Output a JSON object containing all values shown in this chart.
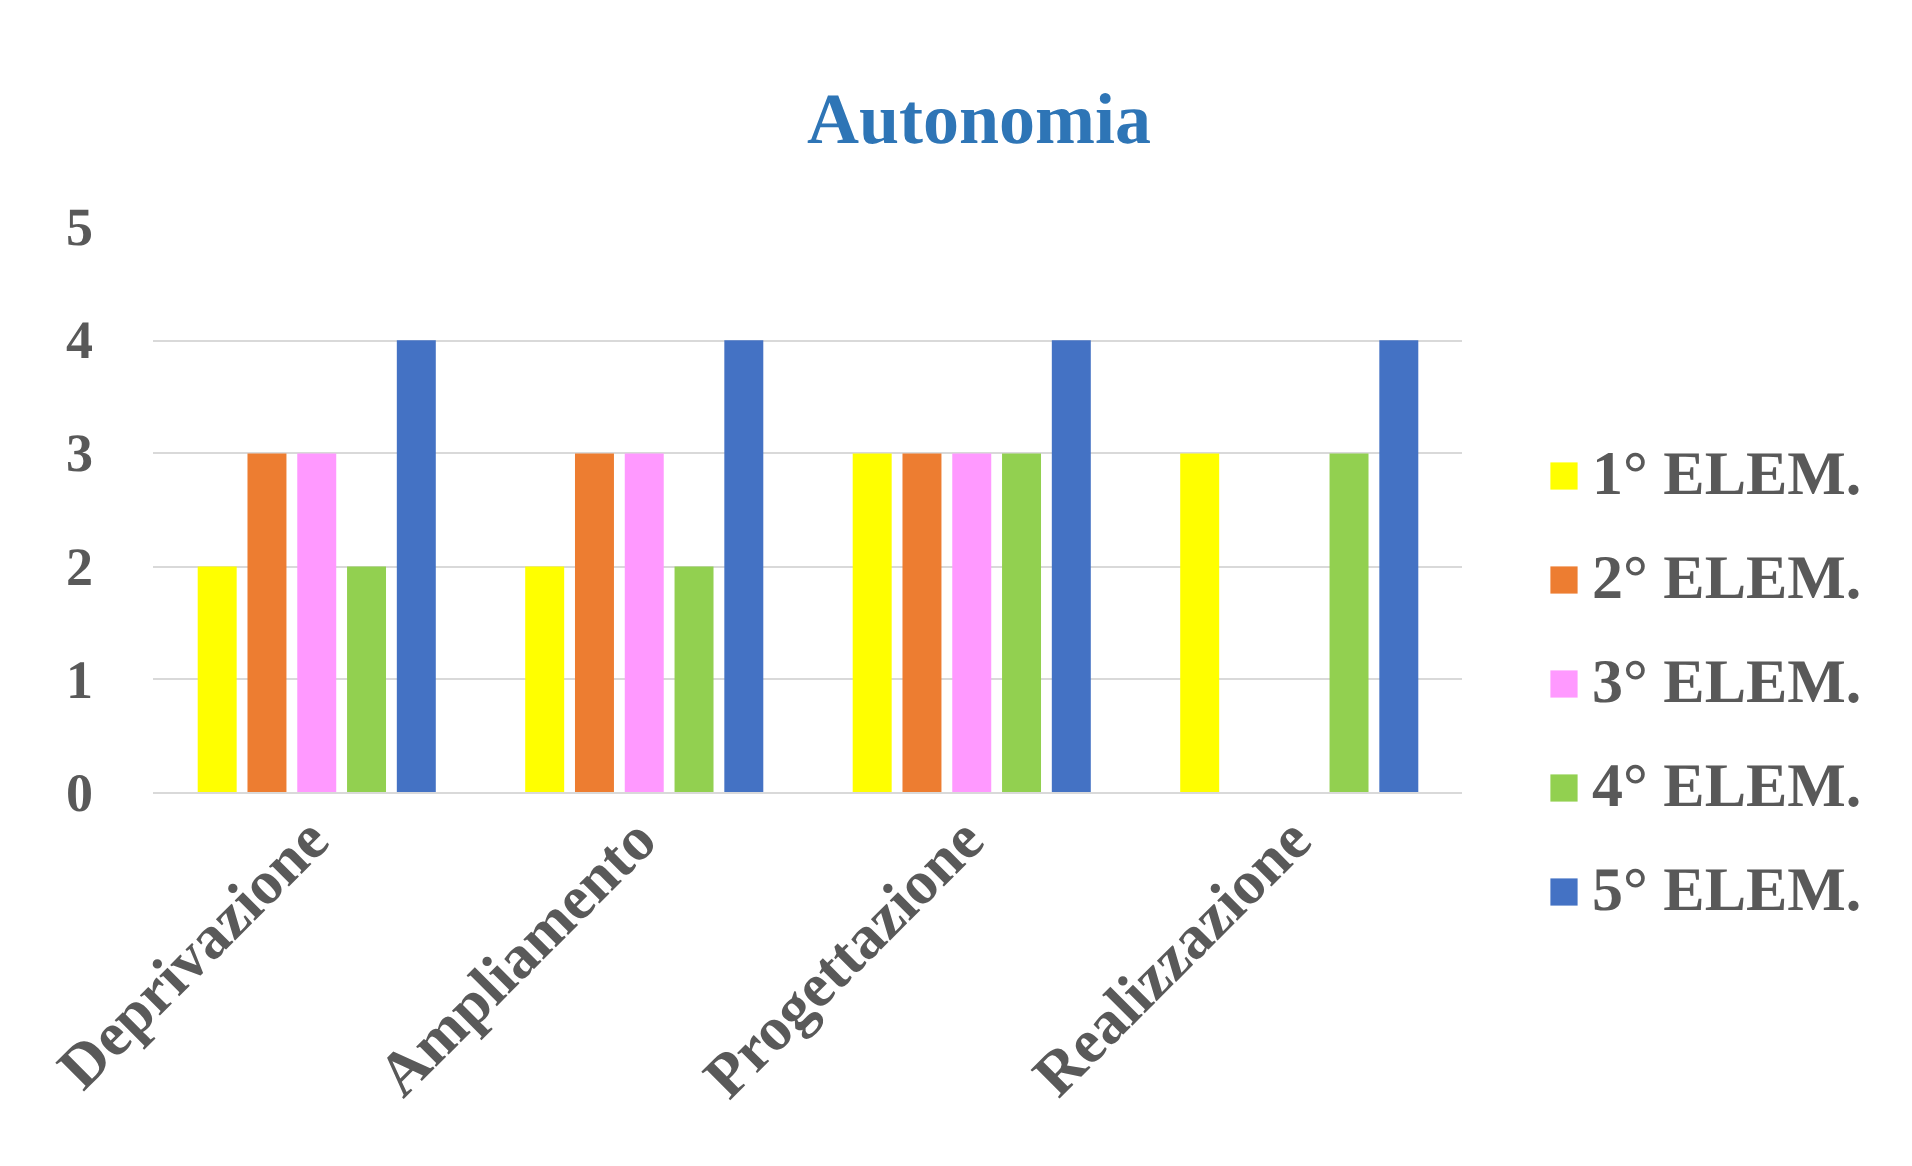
{
  "chart_data": {
    "type": "bar",
    "title": "Autonomia",
    "categories": [
      "Deprivazione",
      "Ampliamento",
      "Progettazione",
      "Realizzazione"
    ],
    "series": [
      {
        "name": "1° ELEM.",
        "color": "#ffff00",
        "values": [
          2,
          2,
          3,
          3
        ]
      },
      {
        "name": "2° ELEM.",
        "color": "#ed7d31",
        "values": [
          3,
          3,
          3,
          null
        ]
      },
      {
        "name": "3° ELEM.",
        "color": "#ff99ff",
        "values": [
          3,
          3,
          3,
          null
        ]
      },
      {
        "name": "4° ELEM.",
        "color": "#92d050",
        "values": [
          2,
          2,
          3,
          3
        ]
      },
      {
        "name": "5° ELEM.",
        "color": "#4472c4",
        "values": [
          4,
          4,
          4,
          4
        ]
      }
    ],
    "ylim": [
      0,
      5
    ],
    "yticks": [
      0,
      1,
      2,
      3,
      4,
      5
    ],
    "grid": "y",
    "legend": "right"
  }
}
